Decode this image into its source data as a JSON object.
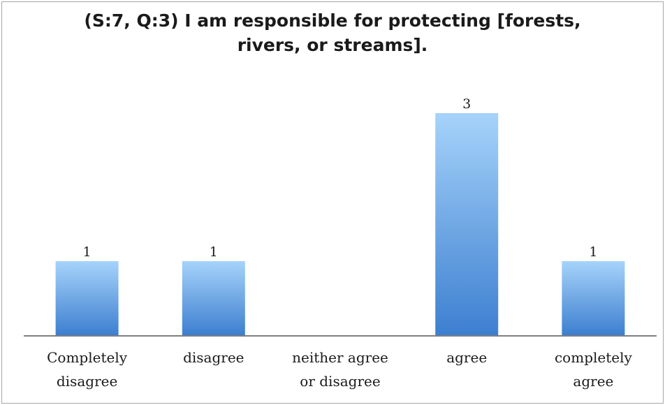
{
  "chart_data": {
    "type": "bar",
    "title": [
      "(S:7, Q:3) I am responsible for protecting [forests,",
      "rivers, or streams]."
    ],
    "categories": [
      [
        "Completely",
        "disagree"
      ],
      [
        "disagree"
      ],
      [
        "neither agree",
        "or disagree"
      ],
      [
        "agree"
      ],
      [
        "completely",
        "agree"
      ]
    ],
    "values": [
      1,
      1,
      0,
      3,
      1
    ],
    "data_labels": [
      "1",
      "1",
      "",
      "3",
      "1"
    ],
    "xlabel": "",
    "ylabel": "",
    "ylim": [
      0,
      3.5
    ],
    "grid": false,
    "legend": "none",
    "colors": {
      "bar_top": "#a6d3fa",
      "bar_bottom": "#3d7fd0",
      "axis": "#7f7f7f",
      "text": "#1a1a1a"
    }
  }
}
